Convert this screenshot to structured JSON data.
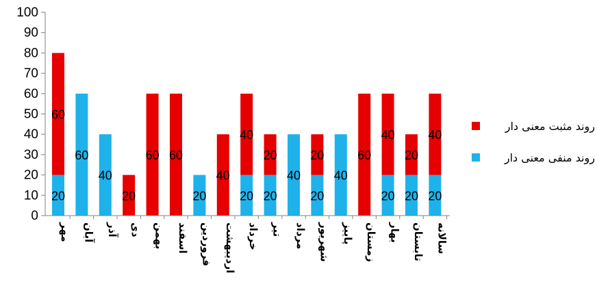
{
  "chart_data": {
    "type": "bar",
    "stacked": true,
    "categories": [
      "مهر",
      "آبان",
      "آذر",
      "دی",
      "بهمن",
      "اسفند",
      "فروردین",
      "اردیبهشت",
      "خرداد",
      "تیر",
      "مرداد",
      "شهریور",
      "پاییز",
      "زمستان",
      "بهار",
      "تابستان",
      "سالانه"
    ],
    "series": [
      {
        "name": "روند منفی معنی دار",
        "color": "#1fb2ea",
        "values": [
          20,
          60,
          40,
          0,
          0,
          0,
          20,
          0,
          20,
          20,
          40,
          20,
          40,
          0,
          20,
          20,
          20
        ]
      },
      {
        "name": "روند مثبت معنی دار",
        "color": "#e60000",
        "values": [
          60,
          0,
          0,
          20,
          60,
          60,
          0,
          40,
          40,
          20,
          0,
          20,
          0,
          60,
          40,
          20,
          40
        ]
      }
    ],
    "yticks": [
      "0",
      "10",
      "20",
      "30",
      "40",
      "50",
      "60",
      "70",
      "80",
      "90",
      "100"
    ],
    "ylim": [
      0,
      100
    ],
    "grid": false,
    "legend_position": "right",
    "title": "",
    "xlabel": "",
    "ylabel": ""
  }
}
